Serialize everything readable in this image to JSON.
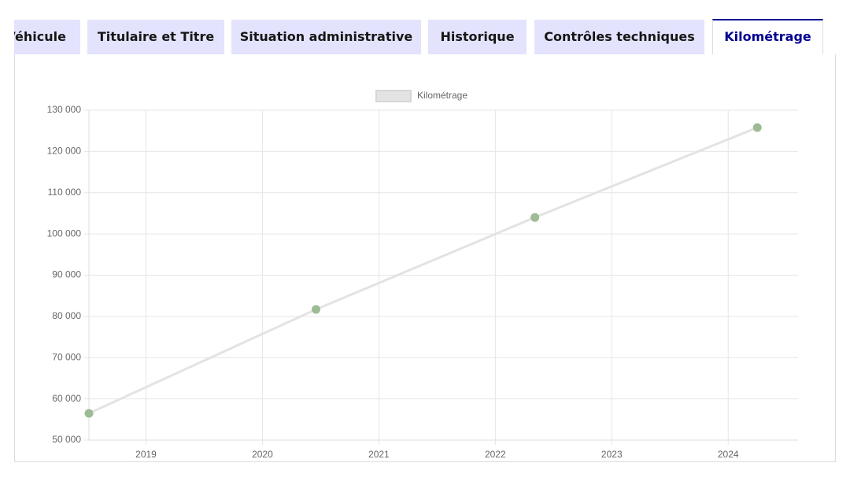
{
  "tabs": [
    {
      "label": "Véhicule"
    },
    {
      "label": "Titulaire et Titre"
    },
    {
      "label": "Situation administrative"
    },
    {
      "label": "Historique"
    },
    {
      "label": "Contrôles techniques"
    },
    {
      "label": "Kilométrage",
      "active": true
    }
  ],
  "chart_data": {
    "type": "line",
    "series": [
      {
        "name": "Kilométrage",
        "color": "#e3e3e3",
        "point_color": "#9dbb94",
        "x": [
          2018.51,
          2020.46,
          2022.34,
          2024.25
        ],
        "values": [
          56500,
          81700,
          104000,
          125800
        ]
      }
    ],
    "xlim": [
      2018.51,
      2024.6
    ],
    "xticks": [
      2019,
      2020,
      2021,
      2022,
      2023,
      2024
    ],
    "ylim": [
      50000,
      130000
    ],
    "yticks": [
      {
        "value": 50000,
        "label": "50 000"
      },
      {
        "value": 60000,
        "label": "60 000"
      },
      {
        "value": 70000,
        "label": "70 000"
      },
      {
        "value": 80000,
        "label": "80 000"
      },
      {
        "value": 90000,
        "label": "90 000"
      },
      {
        "value": 100000,
        "label": "100 000"
      },
      {
        "value": 110000,
        "label": "110 000"
      },
      {
        "value": 120000,
        "label": "120 000"
      },
      {
        "value": 130000,
        "label": "130 000"
      }
    ],
    "grid": true,
    "legend": "top"
  }
}
